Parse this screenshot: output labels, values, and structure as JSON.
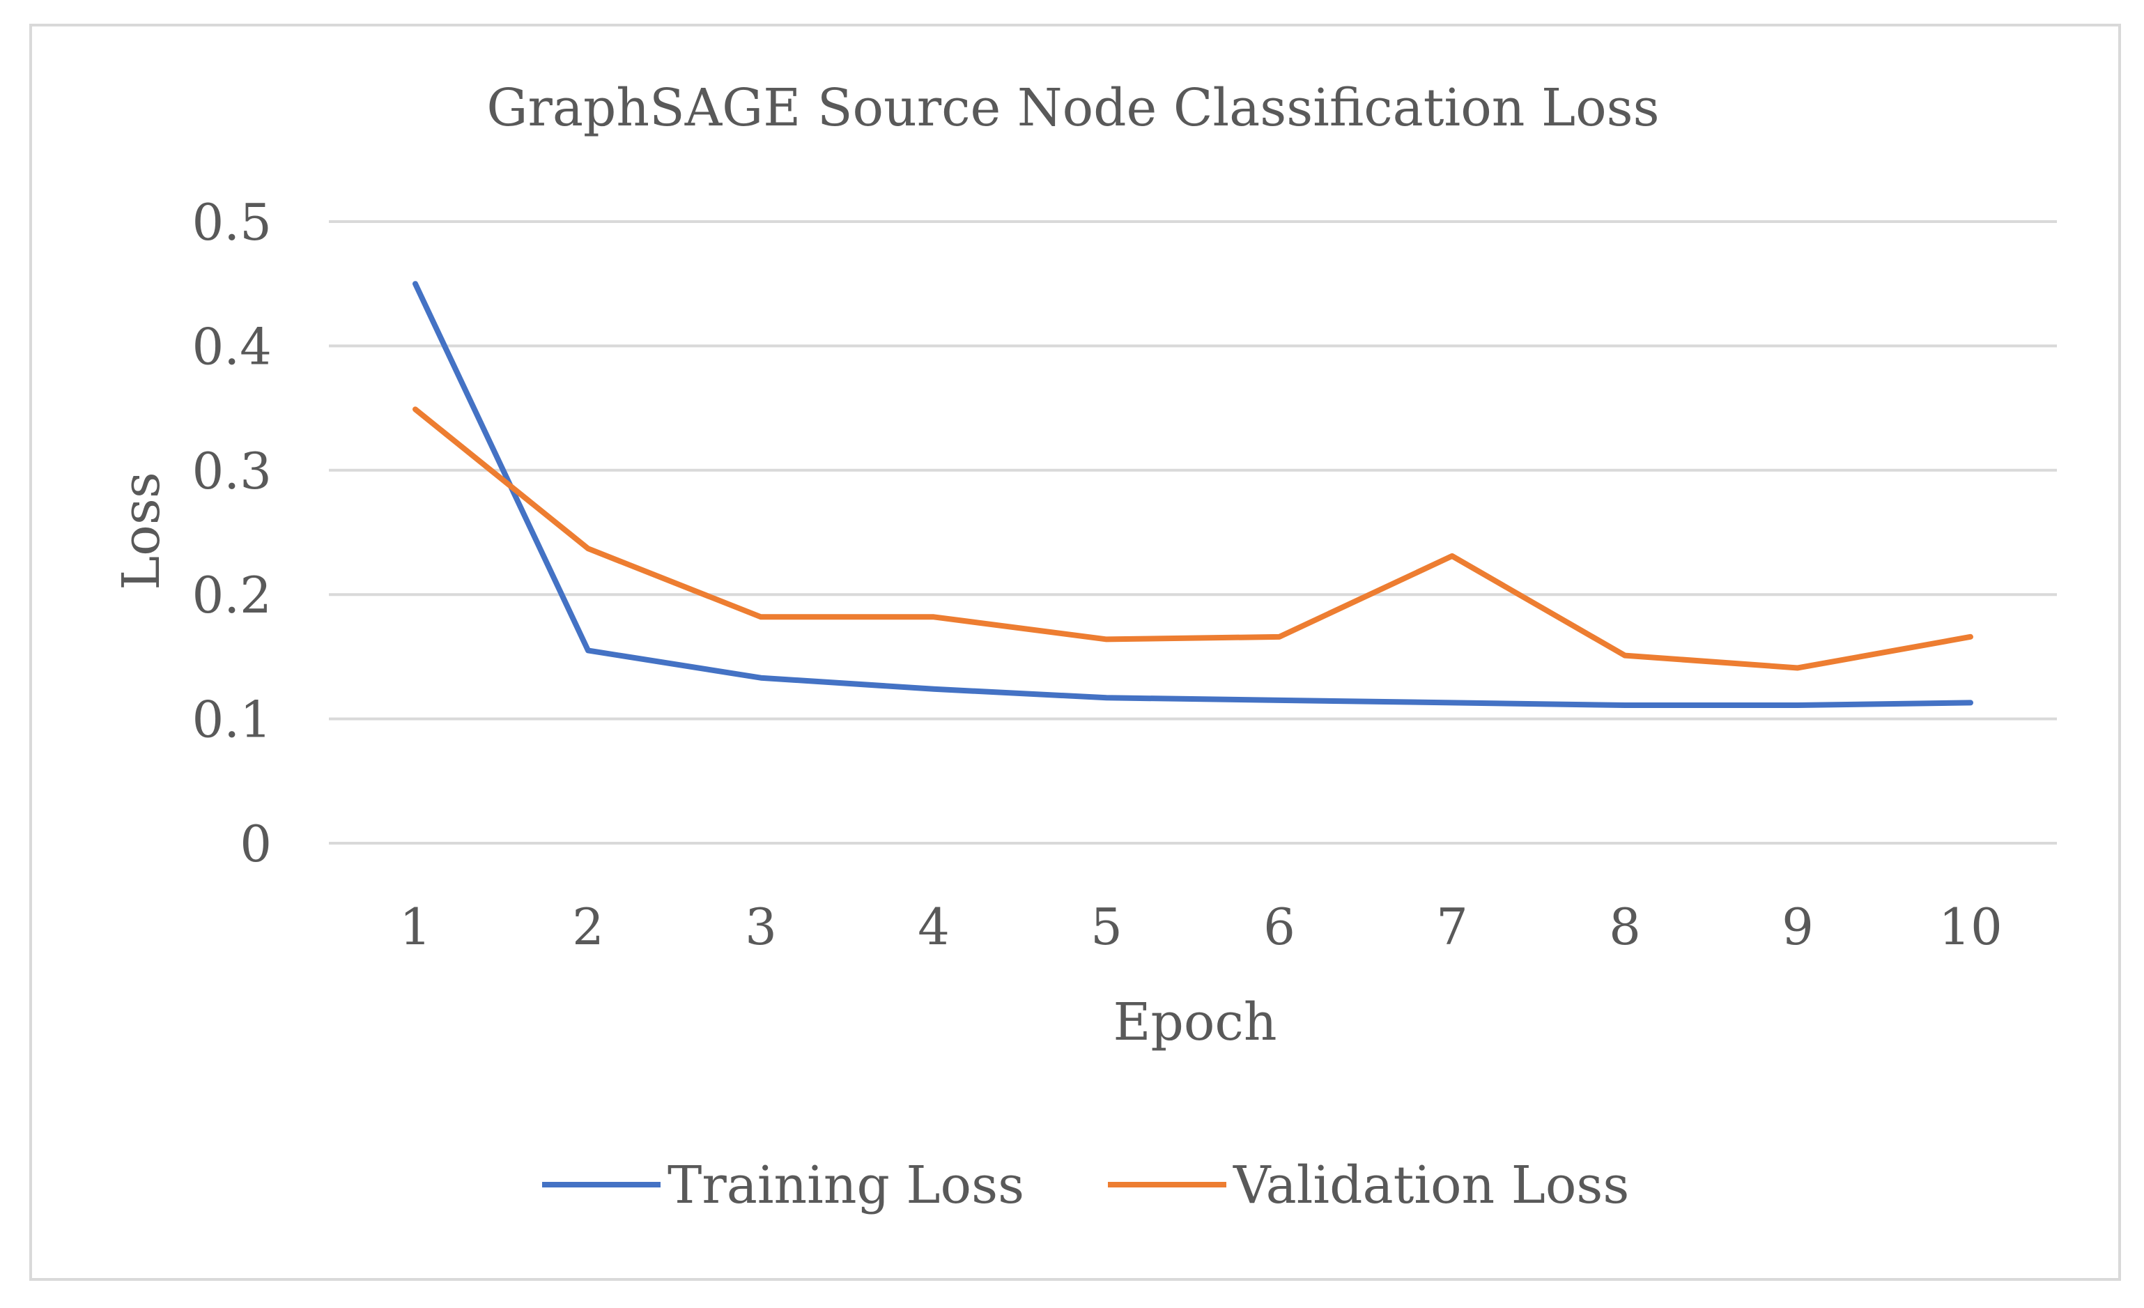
{
  "chart_data": {
    "type": "line",
    "title": "GraphSAGE Source Node Classification Loss",
    "xlabel": "Epoch",
    "ylabel": "Loss",
    "categories": [
      "1",
      "2",
      "3",
      "4",
      "5",
      "6",
      "7",
      "8",
      "9",
      "10"
    ],
    "ylim": [
      0,
      0.5
    ],
    "yticks": [
      "0",
      "0.1",
      "0.2",
      "0.3",
      "0.4",
      "0.5"
    ],
    "grid": true,
    "legend_position": "bottom",
    "series": [
      {
        "name": "Training Loss",
        "color": "#4472C4",
        "values": [
          0.45,
          0.155,
          0.133,
          0.124,
          0.117,
          0.115,
          0.113,
          0.111,
          0.111,
          0.113
        ]
      },
      {
        "name": "Validation Loss",
        "color": "#ED7D31",
        "values": [
          0.349,
          0.237,
          0.182,
          0.182,
          0.164,
          0.166,
          0.231,
          0.151,
          0.141,
          0.166
        ]
      }
    ]
  }
}
